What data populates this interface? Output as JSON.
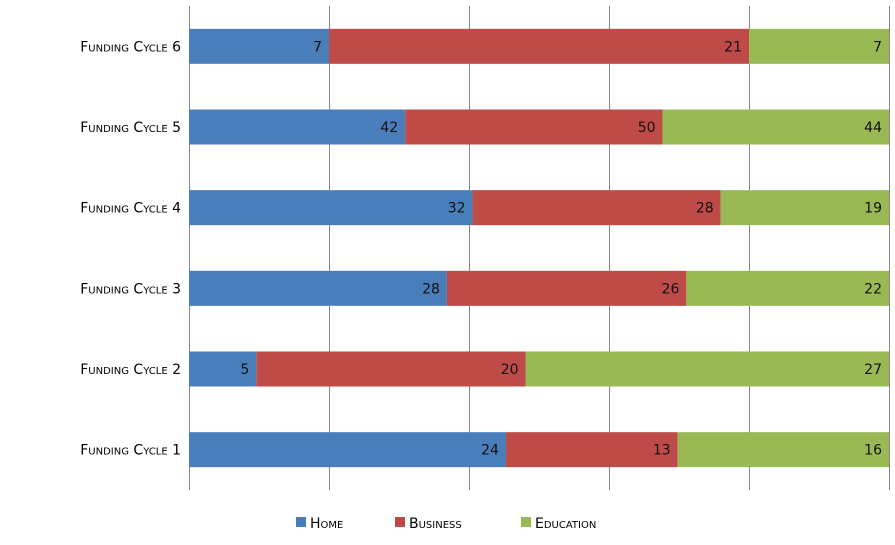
{
  "chart_data": {
    "type": "bar",
    "orientation": "horizontal",
    "stacking": "percent",
    "categories": [
      "Funding Cycle 1",
      "Funding Cycle 2",
      "Funding Cycle 3",
      "Funding Cycle 4",
      "Funding Cycle 5",
      "Funding Cycle 6"
    ],
    "series": [
      {
        "name": "Home",
        "color": "#4a7ebb",
        "values": [
          24,
          5,
          28,
          32,
          42,
          7
        ]
      },
      {
        "name": "Business",
        "color": "#be4b48",
        "values": [
          13,
          20,
          26,
          28,
          50,
          21
        ]
      },
      {
        "name": "Education",
        "color": "#98b954",
        "values": [
          16,
          27,
          22,
          19,
          44,
          7
        ]
      }
    ],
    "xlim": [
      0,
      100
    ],
    "grid": true,
    "legend": "bottom"
  }
}
